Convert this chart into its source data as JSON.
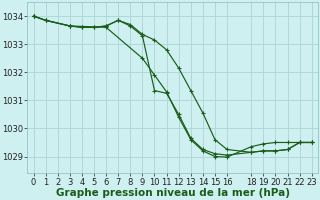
{
  "background_color": "#cff0f0",
  "grid_color": "#b0d8d8",
  "line_color": "#1a5c1a",
  "marker_color": "#1a5c1a",
  "xlabel": "Graphe pression niveau de la mer (hPa)",
  "xlabel_fontsize": 7.5,
  "tick_fontsize": 6,
  "xlim": [
    -0.5,
    23.5
  ],
  "ylim": [
    1028.4,
    1034.5
  ],
  "yticks": [
    1029,
    1030,
    1031,
    1032,
    1033,
    1034
  ],
  "xtick_positions": [
    0,
    1,
    2,
    3,
    4,
    5,
    6,
    7,
    8,
    9,
    10,
    11,
    12,
    13,
    14,
    15,
    16,
    18,
    19,
    20,
    21,
    22,
    23
  ],
  "xtick_labels": [
    "0",
    "1",
    "2",
    "3",
    "4",
    "5",
    "6",
    "7",
    "8",
    "9",
    "10",
    "11",
    "12",
    "13",
    "14",
    "15",
    "16",
    "18",
    "19",
    "20",
    "21",
    "22",
    "23"
  ],
  "line1_x": [
    0,
    1,
    3,
    4,
    5,
    6,
    7,
    8,
    9,
    10,
    11,
    12,
    13,
    14,
    15,
    16,
    18,
    19,
    20,
    21,
    22,
    23
  ],
  "line1_y": [
    1034.0,
    1033.85,
    1033.65,
    1033.6,
    1033.6,
    1033.65,
    1033.85,
    1033.65,
    1033.3,
    1031.35,
    1031.25,
    1030.5,
    1029.65,
    1029.25,
    1029.1,
    1029.05,
    1029.15,
    1029.2,
    1029.2,
    1029.25,
    1029.5,
    1029.5
  ],
  "line2_x": [
    0,
    1,
    3,
    4,
    5,
    6,
    7,
    8,
    9,
    10,
    11,
    12,
    13,
    14,
    15,
    16,
    18,
    19,
    20,
    21,
    22,
    23
  ],
  "line2_y": [
    1034.0,
    1033.85,
    1033.65,
    1033.6,
    1033.6,
    1033.65,
    1033.85,
    1033.7,
    1033.35,
    1033.15,
    1032.8,
    1032.15,
    1031.35,
    1030.55,
    1029.6,
    1029.25,
    1029.15,
    1029.2,
    1029.2,
    1029.25,
    1029.5,
    1029.5
  ],
  "line3_x": [
    0,
    1,
    3,
    6,
    9,
    10,
    11,
    12,
    13,
    14,
    15,
    16,
    18,
    19,
    20,
    21,
    22,
    23
  ],
  "line3_y": [
    1034.0,
    1033.85,
    1033.65,
    1033.6,
    1032.5,
    1031.9,
    1031.3,
    1030.4,
    1029.6,
    1029.2,
    1029.0,
    1028.98,
    1029.35,
    1029.45,
    1029.5,
    1029.5,
    1029.5,
    1029.5
  ]
}
